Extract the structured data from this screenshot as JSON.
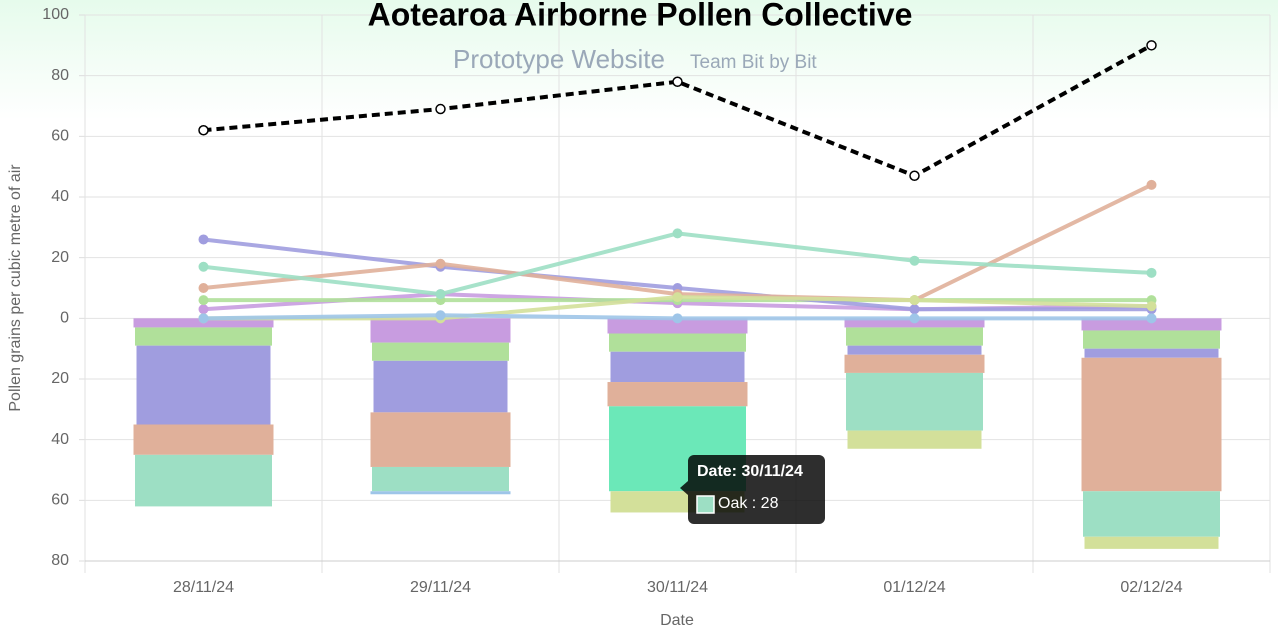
{
  "chart_data": {
    "type": "combo",
    "title": "Aotearoa Airborne Pollen Collective",
    "subtitle": "Prototype Website",
    "team": "Team Bit by Bit",
    "xlabel": "Date",
    "ylabel": "Pollen grains per cubic metre of air",
    "categories": [
      "28/11/24",
      "29/11/24",
      "30/11/24",
      "01/12/24",
      "02/12/24"
    ],
    "ylim": [
      -80,
      100
    ],
    "yticks": [
      100,
      80,
      60,
      40,
      20,
      0,
      {
        "value": -20,
        "label": "20"
      },
      {
        "value": -40,
        "label": "40"
      },
      {
        "value": -60,
        "label": "60"
      },
      {
        "value": -80,
        "label": "80"
      }
    ],
    "grid": true,
    "total": {
      "color": "#000000",
      "style": "dashed",
      "values": [
        62,
        69,
        78,
        47,
        90
      ]
    },
    "series": [
      {
        "color": "#c89ce0",
        "values": [
          3,
          8,
          5,
          3,
          4
        ]
      },
      {
        "color": "#b0e09a",
        "values": [
          6,
          6,
          6,
          6,
          6
        ]
      },
      {
        "color": "#a09ddf",
        "values": [
          26,
          17,
          10,
          3,
          3
        ]
      },
      {
        "color": "#e0b09a",
        "values": [
          10,
          18,
          8,
          6,
          44
        ]
      },
      {
        "name": "Oak",
        "color": "#9ddfc4",
        "values": [
          17,
          8,
          28,
          19,
          15
        ]
      },
      {
        "color": "#d3e09a",
        "values": [
          0,
          0,
          7,
          6,
          4
        ]
      },
      {
        "color": "#9ec5e8",
        "values": [
          0,
          1,
          0,
          0,
          0
        ]
      }
    ],
    "highlight": {
      "series": 4,
      "index": 2,
      "color": "#6be8b8"
    },
    "tooltip": {
      "title": "Date: 30/11/24",
      "label": "Oak : 28"
    }
  }
}
